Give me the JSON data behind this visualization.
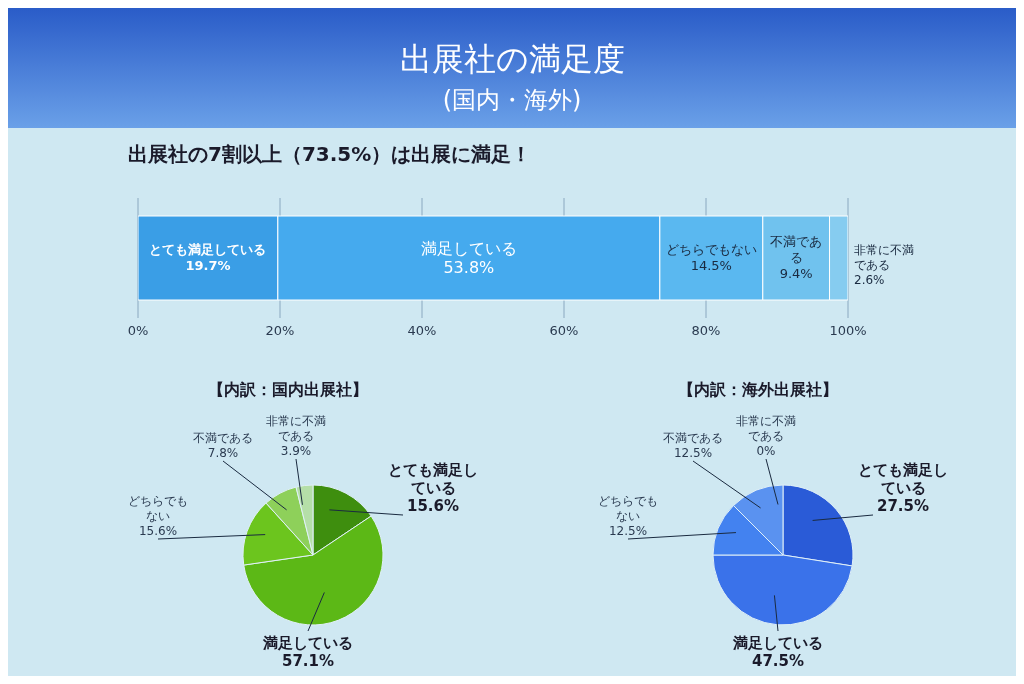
{
  "chart_data": [
    {
      "type": "bar",
      "title": "出展社の満足度",
      "subtitle": "(国内・海外)",
      "annotations": [
        "出展社の7割以上（73.5%）は出展に満足！"
      ],
      "orientation": "horizontal",
      "stacked": true,
      "categories": [
        null
      ],
      "series": [
        {
          "name": "とても満足している",
          "color": "#3a9ee6",
          "values": [
            19.7
          ],
          "value_labels": [
            "19.7%"
          ]
        },
        {
          "name": "満足している",
          "color": "#45aaee",
          "values": [
            53.8
          ],
          "value_labels": [
            "53.8%"
          ]
        },
        {
          "name": "どちらでもない",
          "color": "#5ab8f0",
          "values": [
            14.5
          ],
          "value_labels": [
            "14.5%"
          ]
        },
        {
          "name": "不満である",
          "color": "#70c2ee",
          "values": [
            9.4
          ],
          "value_labels": [
            "9.4%"
          ]
        },
        {
          "name": "非常に不満である",
          "color": "#86ccf0",
          "values": [
            2.6
          ],
          "value_labels": [
            "2.6%"
          ]
        }
      ],
      "xlim": [
        0,
        100
      ],
      "xticks": [
        {
          "value": 0,
          "label": "0%"
        },
        {
          "value": 20,
          "label": "20%"
        },
        {
          "value": 40,
          "label": "40%"
        },
        {
          "value": 60,
          "label": "60%"
        },
        {
          "value": 80,
          "label": "80%"
        },
        {
          "value": 100,
          "label": "100%"
        }
      ],
      "grid": "x"
    },
    {
      "type": "pie",
      "title": "【内訳：国内出展社】",
      "categories": [
        "とても満足している",
        "満足している",
        "どちらでもない",
        "不満である",
        "非常に不満である"
      ],
      "values": [
        15.6,
        57.1,
        15.6,
        7.8,
        3.9
      ],
      "value_labels": [
        "15.6%",
        "57.1%",
        "15.6%",
        "7.8%",
        "3.9%"
      ],
      "colors": [
        "#3e8e0e",
        "#5cb816",
        "#6cc51e",
        "#8ed05a",
        "#b5dfa8"
      ]
    },
    {
      "type": "pie",
      "title": "【内訳：海外出展社】",
      "categories": [
        "とても満足している",
        "満足している",
        "どちらでもない",
        "不満である",
        "非常に不満である"
      ],
      "values": [
        27.5,
        47.5,
        12.5,
        12.5,
        0
      ],
      "value_labels": [
        "27.5%",
        "47.5%",
        "12.5%",
        "12.5%",
        "0%"
      ],
      "colors": [
        "#2a5bd7",
        "#3a72ea",
        "#4382f0",
        "#5a92f0",
        "#7aa6f0"
      ]
    }
  ]
}
